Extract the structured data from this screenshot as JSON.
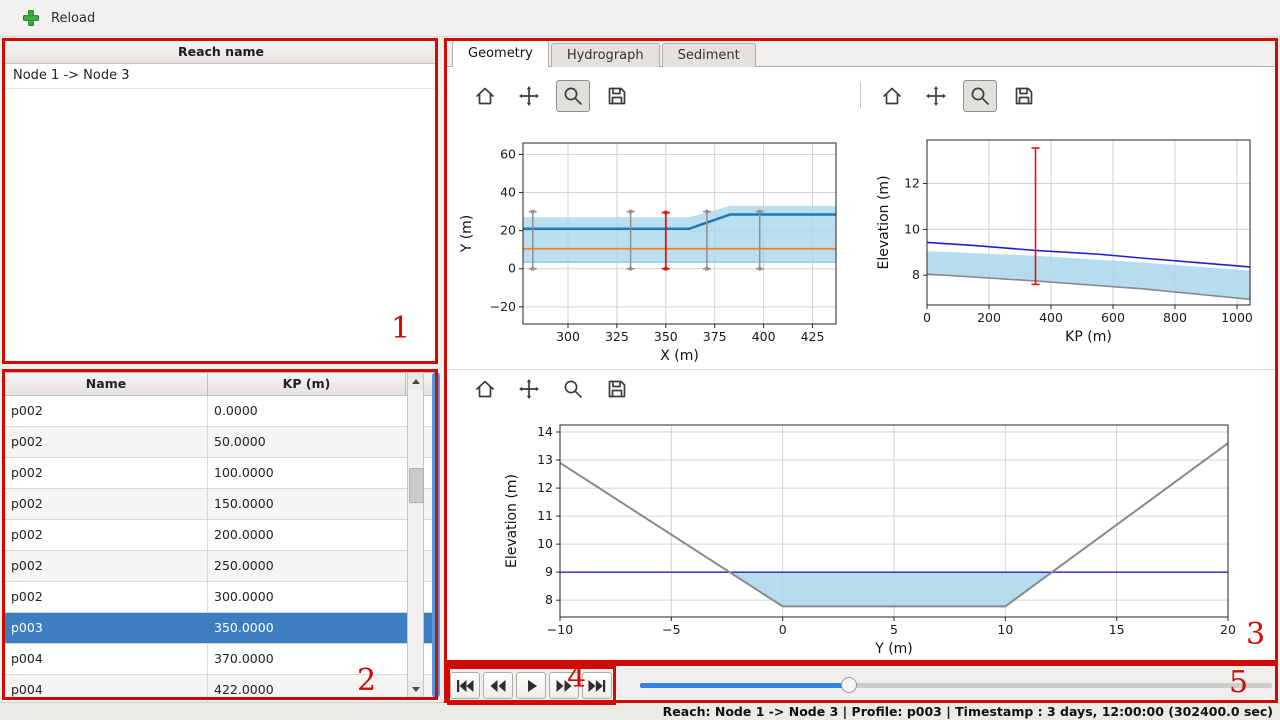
{
  "top_toolbar": {
    "reload_label": "Reload",
    "icon": "add-icon",
    "icon_color": "#3fae3f"
  },
  "reach_panel": {
    "header": "Reach name",
    "items": [
      "Node 1 -> Node 3"
    ]
  },
  "profiles_table": {
    "columns": [
      "Name",
      "KP (m)"
    ],
    "rows": [
      [
        "p002",
        "0.0000"
      ],
      [
        "p002",
        "50.0000"
      ],
      [
        "p002",
        "100.0000"
      ],
      [
        "p002",
        "150.0000"
      ],
      [
        "p002",
        "200.0000"
      ],
      [
        "p002",
        "250.0000"
      ],
      [
        "p002",
        "300.0000"
      ],
      [
        "p003",
        "350.0000"
      ],
      [
        "p004",
        "370.0000"
      ],
      [
        "p004",
        "422.0000"
      ]
    ],
    "selected_row": 7,
    "selected_bg": "#3d7ec0"
  },
  "tabs": {
    "items": [
      {
        "label": "Geometry",
        "active": true
      },
      {
        "label": "Hydrograph",
        "active": false
      },
      {
        "label": "Sediment",
        "active": false
      }
    ]
  },
  "mpl_toolbar_icons": [
    "home",
    "pan",
    "zoom",
    "save"
  ],
  "toolbars": [
    {
      "pressed": "zoom"
    },
    {
      "pressed": "zoom"
    },
    {
      "pressed": null
    }
  ],
  "playback": {
    "buttons": [
      "skip-backward",
      "seek-backward",
      "play",
      "seek-forward",
      "skip-forward"
    ]
  },
  "slider": {
    "fraction": 0.33,
    "fill_color": "#3584e4"
  },
  "status_bar": {
    "text": "Reach: Node 1 -> Node 3 | Profile: p003 | Timestamp : 3 days, 12:00:00 (302400.0 sec)"
  },
  "annotations": {
    "color": "#d00b04",
    "labels": [
      "1",
      "2",
      "3",
      "4",
      "5"
    ]
  },
  "chart_data": [
    {
      "id": "plan_view",
      "type": "line",
      "xlabel": "X (m)",
      "ylabel": "Y (m)",
      "xlim": [
        277,
        437
      ],
      "ylim": [
        -29,
        66
      ],
      "xticks": [
        300,
        325,
        350,
        375,
        400,
        425
      ],
      "yticks": [
        -20,
        0,
        20,
        40,
        60
      ],
      "grid": true,
      "fills": [
        {
          "name": "channel-band",
          "color": "#a9d7ec",
          "opacity": 0.8,
          "points": [
            [
              277,
              3.5
            ],
            [
              437,
              3.5
            ],
            [
              437,
              33
            ],
            [
              383,
              33
            ],
            [
              362,
              27
            ],
            [
              277,
              27
            ]
          ]
        }
      ],
      "lines": [
        {
          "name": "band-bottom-edge",
          "color": "#8ecae6",
          "width": 1.5,
          "points": [
            [
              277,
              3.5
            ],
            [
              437,
              3.5
            ]
          ]
        },
        {
          "name": "water-level-line",
          "color": "#1f77b4",
          "width": 2.5,
          "points": [
            [
              277,
              21
            ],
            [
              362,
              21
            ],
            [
              383,
              28.5
            ],
            [
              437,
              28.5
            ]
          ]
        },
        {
          "name": "thalweg-line",
          "color": "#ff7f0e",
          "width": 1.8,
          "points": [
            [
              277,
              10.5
            ],
            [
              437,
              10.5
            ]
          ]
        }
      ],
      "vlines": [
        {
          "x": 282,
          "y0": 0,
          "y1": 30,
          "color": "#909090",
          "width": 1.5,
          "caps": true,
          "markers": true
        },
        {
          "x": 332,
          "y0": 0,
          "y1": 30,
          "color": "#909090",
          "width": 1.5,
          "caps": true,
          "markers": true
        },
        {
          "x": 350,
          "y0": 0,
          "y1": 29.5,
          "color": "#e8120c",
          "width": 1.8,
          "caps": true,
          "markers": true
        },
        {
          "x": 371,
          "y0": 0,
          "y1": 30,
          "color": "#909090",
          "width": 1.5,
          "caps": true,
          "markers": true
        },
        {
          "x": 398,
          "y0": 0,
          "y1": 30,
          "color": "#909090",
          "width": 1.5,
          "caps": true,
          "markers": true
        }
      ]
    },
    {
      "id": "long_profile",
      "type": "line",
      "xlabel": "KP (m)",
      "ylabel": "Elevation (m)",
      "xlim": [
        0,
        1042
      ],
      "ylim": [
        6.7,
        13.9
      ],
      "xticks": [
        0,
        200,
        400,
        600,
        800,
        1000
      ],
      "yticks": [
        8,
        10,
        12
      ],
      "grid": true,
      "fills": [
        {
          "name": "water-area",
          "color": "#a9d7ec",
          "opacity": 0.85,
          "points": [
            [
              0,
              9.05
            ],
            [
              350,
              8.85
            ],
            [
              700,
              8.55
            ],
            [
              1042,
              8.2
            ],
            [
              1042,
              6.95
            ],
            [
              700,
              7.4
            ],
            [
              350,
              7.75
            ],
            [
              0,
              8.05
            ]
          ]
        }
      ],
      "lines": [
        {
          "name": "water-surface",
          "color": "#2121d4",
          "width": 1.6,
          "points": [
            [
              0,
              9.43
            ],
            [
              150,
              9.3
            ],
            [
              350,
              9.08
            ],
            [
              550,
              8.92
            ],
            [
              700,
              8.74
            ],
            [
              900,
              8.52
            ],
            [
              1042,
              8.36
            ]
          ]
        },
        {
          "name": "bed-line",
          "color": "#8a8a8a",
          "width": 1.6,
          "points": [
            [
              0,
              8.05
            ],
            [
              350,
              7.75
            ],
            [
              700,
              7.4
            ],
            [
              1042,
              6.95
            ]
          ]
        }
      ],
      "vlines": [
        {
          "x": 350,
          "y0": 7.6,
          "y1": 13.55,
          "color": "#e8120c",
          "width": 1.6,
          "caps": true,
          "markers": false
        }
      ]
    },
    {
      "id": "cross_section",
      "type": "line",
      "xlabel": "Y (m)",
      "ylabel": "Elevation (m)",
      "xlim": [
        -10,
        20
      ],
      "ylim": [
        7.4,
        14.25
      ],
      "xticks": [
        -10,
        -5,
        0,
        5,
        10,
        15,
        20
      ],
      "yticks": [
        8,
        9,
        10,
        11,
        12,
        13,
        14
      ],
      "grid": true,
      "fills": [
        {
          "name": "water-area",
          "color": "#a9d7ec",
          "opacity": 0.85,
          "points": [
            [
              -2.38,
              9
            ],
            [
              0,
              7.78
            ],
            [
              10,
              7.78
            ],
            [
              12.1,
              9
            ]
          ]
        }
      ],
      "lines": [
        {
          "name": "water-level-line",
          "color": "#2121d4",
          "width": 1.4,
          "points": [
            [
              -10,
              9
            ],
            [
              20,
              9
            ]
          ]
        },
        {
          "name": "bed-line",
          "color": "#8a8a8a",
          "width": 2,
          "points": [
            [
              -10,
              12.9
            ],
            [
              0,
              7.78
            ],
            [
              10,
              7.78
            ],
            [
              20,
              13.6
            ]
          ]
        }
      ],
      "vlines": []
    }
  ]
}
